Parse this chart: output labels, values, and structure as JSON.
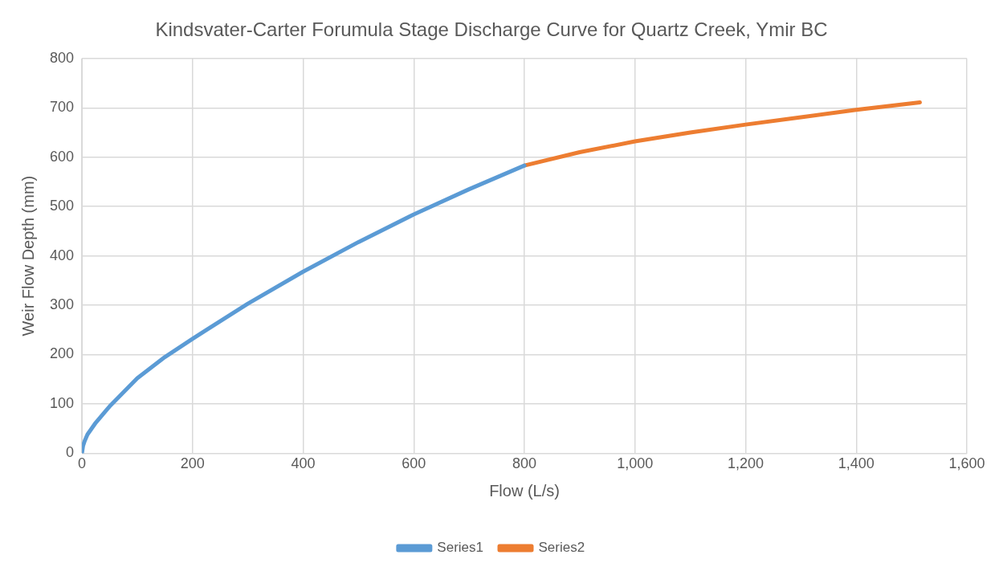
{
  "chart_data": {
    "type": "line",
    "title": "Kindsvater-Carter Forumula Stage Discharge Curve for Quartz Creek, Ymir BC",
    "xlabel": "Flow (L/s)",
    "ylabel": "Weir Flow Depth (mm)",
    "series": [
      {
        "name": "Series1",
        "color": "#5b9bd5",
        "x": [
          0,
          2,
          5,
          10,
          25,
          50,
          100,
          150,
          200,
          300,
          400,
          500,
          600,
          700,
          800
        ],
        "values": [
          0,
          15,
          25,
          38,
          62,
          95,
          152,
          195,
          232,
          303,
          368,
          428,
          484,
          535,
          583
        ]
      },
      {
        "name": "Series2",
        "color": "#ed7d31",
        "x": [
          800,
          900,
          1000,
          1100,
          1200,
          1300,
          1400,
          1515
        ],
        "values": [
          583,
          610,
          632,
          650,
          666,
          681,
          696,
          711
        ]
      }
    ],
    "xlim": [
      0,
      1600
    ],
    "xticks": [
      0,
      200,
      400,
      600,
      800,
      {
        "value": 1000,
        "label": "1,000"
      },
      {
        "value": 1200,
        "label": "1,200"
      },
      {
        "value": 1400,
        "label": "1,400"
      },
      {
        "value": 1600,
        "label": "1,600"
      }
    ],
    "ylim": [
      0,
      800
    ],
    "yticks": [
      0,
      100,
      200,
      300,
      400,
      500,
      600,
      700,
      800
    ],
    "grid": true,
    "legend": "bottom",
    "marker": "none",
    "line_style": "solid"
  }
}
